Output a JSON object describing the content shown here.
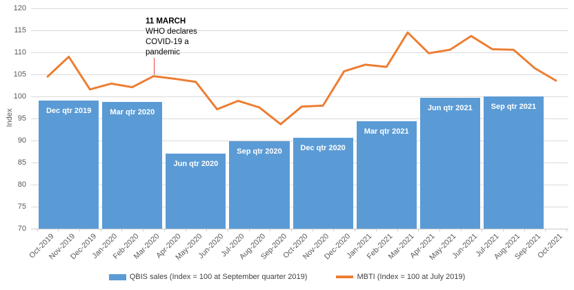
{
  "chart_data": {
    "type": "combo",
    "title": "",
    "xlabel": "",
    "ylabel": "Index",
    "ylim": [
      70,
      120
    ],
    "yticks": [
      70,
      75,
      80,
      85,
      90,
      95,
      100,
      105,
      110,
      115,
      120
    ],
    "grid": true,
    "legend_position": "bottom-center",
    "months": [
      "Oct-2019",
      "Nov-2019",
      "Dec-2019",
      "Jan-2020",
      "Feb-2020",
      "Mar-2020",
      "Apr-2020",
      "May-2020",
      "Jun-2020",
      "Jul-2020",
      "Aug-2020",
      "Sep-2020",
      "Oct-2020",
      "Nov-2020",
      "Dec-2020",
      "Jan-2021",
      "Feb-2021",
      "Mar-2021",
      "Apr-2021",
      "May-2021",
      "Jun-2021",
      "Jul-2021",
      "Aug-2021",
      "Sep-2021",
      "Oct-2021"
    ],
    "bar_series": {
      "name": "QBIS sales (Index = 100 at September quarter 2019)",
      "type": "bar",
      "color": "#5B9BD5",
      "label_color": "#FFFFFF",
      "bars": [
        {
          "label": "Dec qtr 2019",
          "start_month": "Oct-2019",
          "end_month": "Dec-2019",
          "value": 99.0
        },
        {
          "label": "Mar qtr 2020",
          "start_month": "Jan-2020",
          "end_month": "Mar-2020",
          "value": 98.7
        },
        {
          "label": "Jun qtr 2020",
          "start_month": "Apr-2020",
          "end_month": "Jun-2020",
          "value": 87.0
        },
        {
          "label": "Sep qtr 2020",
          "start_month": "Jul-2020",
          "end_month": "Sep-2020",
          "value": 89.8
        },
        {
          "label": "Dec qtr 2020",
          "start_month": "Oct-2020",
          "end_month": "Dec-2020",
          "value": 90.7
        },
        {
          "label": "Mar qtr 2021",
          "start_month": "Jan-2021",
          "end_month": "Mar-2021",
          "value": 94.3
        },
        {
          "label": "Jun qtr 2021",
          "start_month": "Apr-2021",
          "end_month": "Jun-2021",
          "value": 99.7
        },
        {
          "label": "Sep qtr 2021",
          "start_month": "Jul-2021",
          "end_month": "Sep-2021",
          "value": 100.0
        }
      ]
    },
    "line_series": {
      "name": "MBTI (Index = 100 at July 2019)",
      "type": "line",
      "color": "#ED7D31",
      "values": [
        104.5,
        109.0,
        101.6,
        102.9,
        102.1,
        104.6,
        104.0,
        103.3,
        97.1,
        99.0,
        97.5,
        93.7,
        97.7,
        97.9,
        105.7,
        107.2,
        106.7,
        114.5,
        109.8,
        110.6,
        113.7,
        110.7,
        110.6,
        106.4,
        103.6
      ]
    },
    "annotation": {
      "title": "11 MARCH",
      "body_lines": [
        "WHO declares",
        "COVID-19 a",
        "pandemic"
      ],
      "month": "Mar-2020",
      "line_color": "#F03C3C",
      "text_color": "#000000"
    },
    "legend": [
      {
        "label": "QBIS sales (Index = 100 at September quarter 2019)",
        "swatch": "bar",
        "color": "#5B9BD5"
      },
      {
        "label": "MBTI (Index = 100 at July 2019)",
        "swatch": "line",
        "color": "#ED7D31"
      }
    ],
    "colors": {
      "gridline": "#D9D9D9",
      "axis_line": "#C9C9C9",
      "axis_text": "#595959",
      "legend_text": "#404040"
    }
  }
}
